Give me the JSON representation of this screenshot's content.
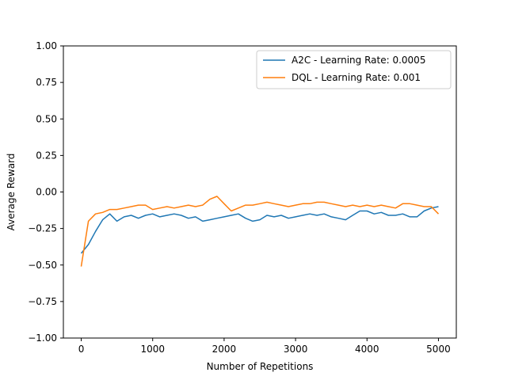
{
  "chart_data": {
    "type": "line",
    "title": "",
    "xlabel": "Number of Repetitions",
    "ylabel": "Average Reward",
    "xlim": [
      -250,
      5250
    ],
    "ylim": [
      -1.0,
      1.0
    ],
    "xticks": [
      0,
      1000,
      2000,
      3000,
      4000,
      5000
    ],
    "xtick_labels": [
      "0",
      "1000",
      "2000",
      "3000",
      "4000",
      "5000"
    ],
    "yticks": [
      1.0,
      0.75,
      0.5,
      0.25,
      0.0,
      -0.25,
      -0.5,
      -0.75,
      -1.0
    ],
    "ytick_labels": [
      "1.00",
      "0.75",
      "0.50",
      "0.25",
      "0.00",
      "−0.25",
      "−0.50",
      "−0.75",
      "−1.00"
    ],
    "grid": false,
    "legend_position": "top-right",
    "series": [
      {
        "name": "A2C - Learning Rate: 0.0005",
        "color": "#1f77b4",
        "x": [
          0,
          100,
          200,
          300,
          400,
          500,
          600,
          700,
          800,
          900,
          1000,
          1100,
          1200,
          1300,
          1400,
          1500,
          1600,
          1700,
          1800,
          1900,
          2000,
          2100,
          2200,
          2300,
          2400,
          2500,
          2600,
          2700,
          2800,
          2900,
          3000,
          3100,
          3200,
          3300,
          3400,
          3500,
          3600,
          3700,
          3800,
          3900,
          4000,
          4100,
          4200,
          4300,
          4400,
          4500,
          4600,
          4700,
          4800,
          4900,
          5000
        ],
        "y": [
          -0.42,
          -0.36,
          -0.27,
          -0.19,
          -0.15,
          -0.2,
          -0.17,
          -0.16,
          -0.18,
          -0.16,
          -0.15,
          -0.17,
          -0.16,
          -0.15,
          -0.16,
          -0.18,
          -0.17,
          -0.2,
          -0.19,
          -0.18,
          -0.17,
          -0.16,
          -0.15,
          -0.18,
          -0.2,
          -0.19,
          -0.16,
          -0.17,
          -0.16,
          -0.18,
          -0.17,
          -0.16,
          -0.15,
          -0.16,
          -0.15,
          -0.17,
          -0.18,
          -0.19,
          -0.16,
          -0.13,
          -0.13,
          -0.15,
          -0.14,
          -0.16,
          -0.16,
          -0.15,
          -0.17,
          -0.17,
          -0.13,
          -0.11,
          -0.1
        ]
      },
      {
        "name": "DQL - Learning Rate: 0.001",
        "color": "#ff7f0e",
        "x": [
          0,
          100,
          200,
          300,
          400,
          500,
          600,
          700,
          800,
          900,
          1000,
          1100,
          1200,
          1300,
          1400,
          1500,
          1600,
          1700,
          1800,
          1900,
          2000,
          2100,
          2200,
          2300,
          2400,
          2500,
          2600,
          2700,
          2800,
          2900,
          3000,
          3100,
          3200,
          3300,
          3400,
          3500,
          3600,
          3700,
          3800,
          3900,
          4000,
          4100,
          4200,
          4300,
          4400,
          4500,
          4600,
          4700,
          4800,
          4900,
          5000
        ],
        "y": [
          -0.51,
          -0.2,
          -0.15,
          -0.14,
          -0.12,
          -0.12,
          -0.11,
          -0.1,
          -0.09,
          -0.09,
          -0.12,
          -0.11,
          -0.1,
          -0.11,
          -0.1,
          -0.09,
          -0.1,
          -0.09,
          -0.05,
          -0.03,
          -0.08,
          -0.13,
          -0.11,
          -0.09,
          -0.09,
          -0.08,
          -0.07,
          -0.08,
          -0.09,
          -0.1,
          -0.09,
          -0.08,
          -0.08,
          -0.07,
          -0.07,
          -0.08,
          -0.09,
          -0.1,
          -0.09,
          -0.1,
          -0.09,
          -0.1,
          -0.09,
          -0.1,
          -0.11,
          -0.08,
          -0.08,
          -0.09,
          -0.1,
          -0.1,
          -0.15
        ]
      }
    ]
  }
}
